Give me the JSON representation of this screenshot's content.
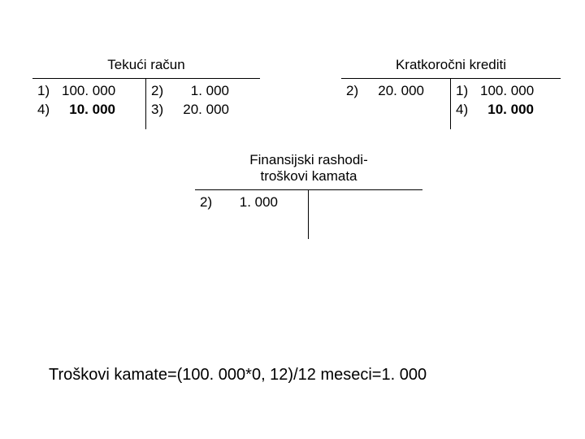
{
  "accounts": {
    "tekuci": {
      "title": "Tekući račun",
      "left": [
        {
          "ref": "1)",
          "val": "100. 000",
          "bold": false
        },
        {
          "ref": "4)",
          "val": "10. 000",
          "bold": true
        }
      ],
      "right": [
        {
          "ref": "2)",
          "val": "1. 000",
          "bold": false
        },
        {
          "ref": "3)",
          "val": "20. 000",
          "bold": false
        }
      ]
    },
    "kratkorocni": {
      "title": "Kratkoročni krediti",
      "left": [
        {
          "ref": "2)",
          "val": "20. 000",
          "bold": false
        }
      ],
      "right": [
        {
          "ref": "1)",
          "val": "100. 000",
          "bold": false
        },
        {
          "ref": "4)",
          "val": "10. 000",
          "bold": true
        }
      ]
    },
    "finansijski": {
      "title_line1": "Finansijski rashodi-",
      "title_line2": "troškovi kamata",
      "left": [
        {
          "ref": "2)",
          "val": "1. 000",
          "bold": false
        }
      ],
      "right": []
    }
  },
  "formula": "Troškovi kamate=(100. 000*0, 12)/12 meseci=1. 000",
  "colors": {
    "background": "#ffffff",
    "text": "#000000",
    "border": "#000000"
  },
  "typography": {
    "base_font_size": 17,
    "formula_font_size": 20,
    "font_family": "Arial"
  }
}
